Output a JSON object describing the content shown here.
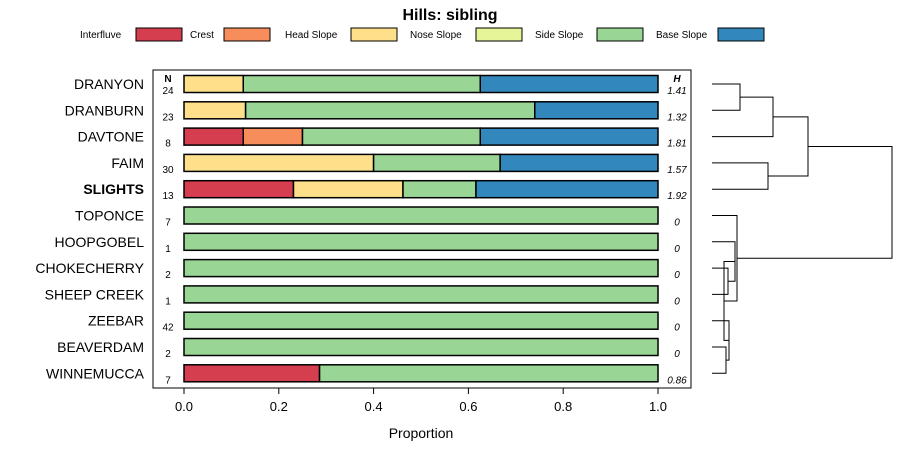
{
  "chart_data": {
    "type": "bar",
    "stacked": true,
    "orientation": "horizontal",
    "title": "Hills: sibling",
    "xlabel": "Proportion",
    "xlim": [
      0,
      1
    ],
    "x_ticks": [
      "0.0",
      "0.2",
      "0.4",
      "0.6",
      "0.8",
      "1.0"
    ],
    "n_header": "N",
    "h_header": "H",
    "legend": [
      {
        "name": "Interfluve",
        "color": "#d53e4f"
      },
      {
        "name": "Crest",
        "color": "#f68d5b"
      },
      {
        "name": "Head Slope",
        "color": "#fee08b"
      },
      {
        "name": "Nose Slope",
        "color": "#e6f598"
      },
      {
        "name": "Side Slope",
        "color": "#99d594"
      },
      {
        "name": "Base Slope",
        "color": "#3288bd"
      }
    ],
    "rows": [
      {
        "label": "DRANYON",
        "n": "24",
        "h": "1.41",
        "values": [
          0,
          0,
          0.125,
          0,
          0.5,
          0.375
        ]
      },
      {
        "label": "DRANBURN",
        "n": "23",
        "h": "1.32",
        "values": [
          0,
          0,
          0.13,
          0,
          0.61,
          0.26
        ]
      },
      {
        "label": "DAVTONE",
        "n": "8",
        "h": "1.81",
        "values": [
          0.125,
          0.125,
          0,
          0,
          0.375,
          0.375
        ]
      },
      {
        "label": "FAIM",
        "n": "30",
        "h": "1.57",
        "values": [
          0,
          0,
          0.4,
          0,
          0.267,
          0.333
        ]
      },
      {
        "label": "SLIGHTS",
        "n": "13",
        "h": "1.92",
        "bold": true,
        "values": [
          0.231,
          0,
          0.231,
          0,
          0.154,
          0.384
        ]
      },
      {
        "label": "TOPONCE",
        "n": "7",
        "h": "0",
        "values": [
          0,
          0,
          0,
          0,
          1,
          0
        ]
      },
      {
        "label": "HOOPGOBEL",
        "n": "1",
        "h": "0",
        "values": [
          0,
          0,
          0,
          0,
          1,
          0
        ]
      },
      {
        "label": "CHOKECHERRY",
        "n": "2",
        "h": "0",
        "values": [
          0,
          0,
          0,
          0,
          1,
          0
        ]
      },
      {
        "label": "SHEEP CREEK",
        "n": "1",
        "h": "0",
        "values": [
          0,
          0,
          0,
          0,
          1,
          0
        ]
      },
      {
        "label": "ZEEBAR",
        "n": "42",
        "h": "0",
        "values": [
          0,
          0,
          0,
          0,
          1,
          0
        ]
      },
      {
        "label": "BEAVERDAM",
        "n": "2",
        "h": "0",
        "values": [
          0,
          0,
          0,
          0,
          1,
          0
        ]
      },
      {
        "label": "WINNEMUCCA",
        "n": "7",
        "h": "0.86",
        "values": [
          0.286,
          0,
          0,
          0,
          0.714,
          0
        ]
      }
    ],
    "dendrogram_merges": [
      [
        0,
        1
      ],
      [
        -1,
        2
      ],
      [
        3,
        4
      ],
      [
        -2,
        -3
      ],
      [
        7,
        8
      ],
      [
        6,
        -5
      ],
      [
        10,
        11
      ],
      [
        9,
        -7
      ],
      [
        -6,
        -8
      ],
      [
        5,
        -9
      ],
      [
        -4,
        -10
      ]
    ]
  }
}
